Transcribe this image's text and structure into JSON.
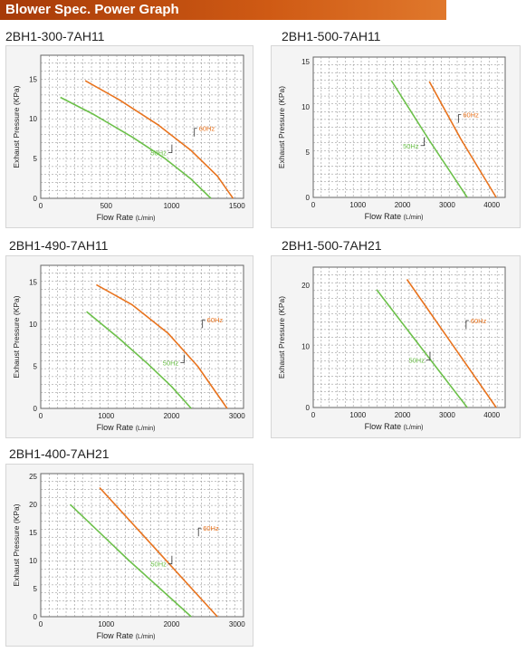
{
  "header": {
    "title": "Blower Spec. Power Graph"
  },
  "colors": {
    "hz60": "#e8731e",
    "hz50": "#6cc04a",
    "header": "#c9540f"
  },
  "chart_data": [
    {
      "type": "line",
      "title": "2BH1-300-7AH11",
      "ylabel": "Exhaust Pressure",
      "yunit": "(KPa)",
      "xlabel": "Flow Rate",
      "xunit": "(L/min)",
      "xlim": [
        0,
        1550
      ],
      "ylim": [
        0,
        18
      ],
      "xticks": [
        0,
        500,
        1000,
        1500
      ],
      "yticks": [
        0,
        5,
        10,
        15
      ],
      "series": [
        {
          "name": "60Hz",
          "x": [
            340,
            600,
            900,
            1150,
            1350,
            1470
          ],
          "y": [
            14.8,
            12.4,
            9.2,
            6.0,
            2.8,
            0
          ]
        },
        {
          "name": "50Hz",
          "x": [
            150,
            400,
            700,
            950,
            1150,
            1300
          ],
          "y": [
            12.7,
            10.6,
            7.7,
            5.0,
            2.4,
            0
          ]
        }
      ]
    },
    {
      "type": "line",
      "title": "2BH1-500-7AH11",
      "ylabel": "Exhaust Pressure",
      "yunit": "(KPa)",
      "xlabel": "Flow Rate",
      "xunit": "(L/min)",
      "xlim": [
        0,
        4300
      ],
      "ylim": [
        0,
        15.5
      ],
      "xticks": [
        0,
        1000,
        2000,
        3000,
        4000
      ],
      "yticks": [
        0,
        5,
        10,
        15
      ],
      "series": [
        {
          "name": "60Hz",
          "x": [
            2600,
            3300,
            4100
          ],
          "y": [
            12.8,
            6.5,
            0
          ]
        },
        {
          "name": "50Hz",
          "x": [
            1750,
            2600,
            3450
          ],
          "y": [
            12.9,
            6.3,
            0
          ]
        }
      ]
    },
    {
      "type": "line",
      "title": "2BH1-490-7AH11",
      "ylabel": "Exhaust Pressure",
      "yunit": "(KPa)",
      "xlabel": "Flow Rate",
      "xunit": "(L/min)",
      "xlim": [
        0,
        3100
      ],
      "ylim": [
        0,
        17
      ],
      "xticks": [
        0,
        1000,
        2000,
        3000
      ],
      "yticks": [
        0,
        5,
        10,
        15
      ],
      "series": [
        {
          "name": "60Hz",
          "x": [
            850,
            1400,
            1950,
            2400,
            2850
          ],
          "y": [
            14.7,
            12.3,
            8.9,
            5.0,
            0
          ]
        },
        {
          "name": "50Hz",
          "x": [
            700,
            1200,
            1650,
            2000,
            2300
          ],
          "y": [
            11.5,
            8.3,
            5.2,
            2.6,
            0
          ]
        }
      ]
    },
    {
      "type": "line",
      "title": "2BH1-500-7AH21",
      "ylabel": "Exhaust Pressure",
      "yunit": "(KPa)",
      "xlabel": "Flow Rate",
      "xunit": "(L/min)",
      "xlim": [
        0,
        4300
      ],
      "ylim": [
        0,
        23
      ],
      "xticks": [
        0,
        1000,
        2000,
        3000,
        4000
      ],
      "yticks": [
        0,
        10,
        20
      ],
      "series": [
        {
          "name": "60Hz",
          "x": [
            2100,
            3100,
            4100
          ],
          "y": [
            21.0,
            10.5,
            0
          ]
        },
        {
          "name": "50Hz",
          "x": [
            1420,
            2450,
            3450
          ],
          "y": [
            19.3,
            9.5,
            0
          ]
        }
      ]
    },
    {
      "type": "line",
      "title": "2BH1-400-7AH21",
      "ylabel": "Exhaust Pressure",
      "yunit": "(KPa)",
      "xlabel": "Flow Rate",
      "xunit": "(L/min)",
      "xlim": [
        0,
        3100
      ],
      "ylim": [
        0,
        25.5
      ],
      "xticks": [
        0,
        1000,
        2000,
        3000
      ],
      "yticks": [
        0,
        5,
        10,
        15,
        20,
        25
      ],
      "series": [
        {
          "name": "60Hz",
          "x": [
            900,
            1800,
            2700
          ],
          "y": [
            23.0,
            11.5,
            0
          ]
        },
        {
          "name": "50Hz",
          "x": [
            450,
            1350,
            2300
          ],
          "y": [
            20.0,
            10.0,
            0
          ]
        }
      ]
    }
  ]
}
